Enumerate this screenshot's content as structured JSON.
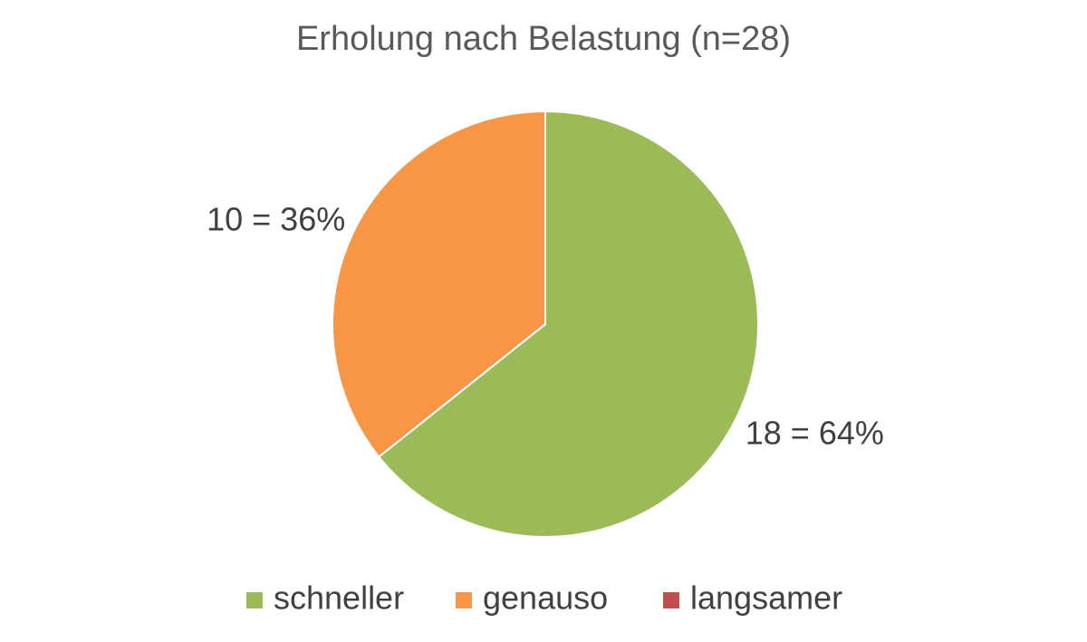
{
  "chart_data": {
    "type": "pie",
    "title": "Erholung nach Belastung (n=28)",
    "categories": [
      "schneller",
      "genauso",
      "langsamer"
    ],
    "values": [
      18,
      10,
      0
    ],
    "value_labels": [
      "18 = 64%",
      "10 = 36%",
      null
    ],
    "colors": [
      "#9bbb59",
      "#f79646",
      "#c0504d"
    ],
    "legend": "bottom"
  }
}
